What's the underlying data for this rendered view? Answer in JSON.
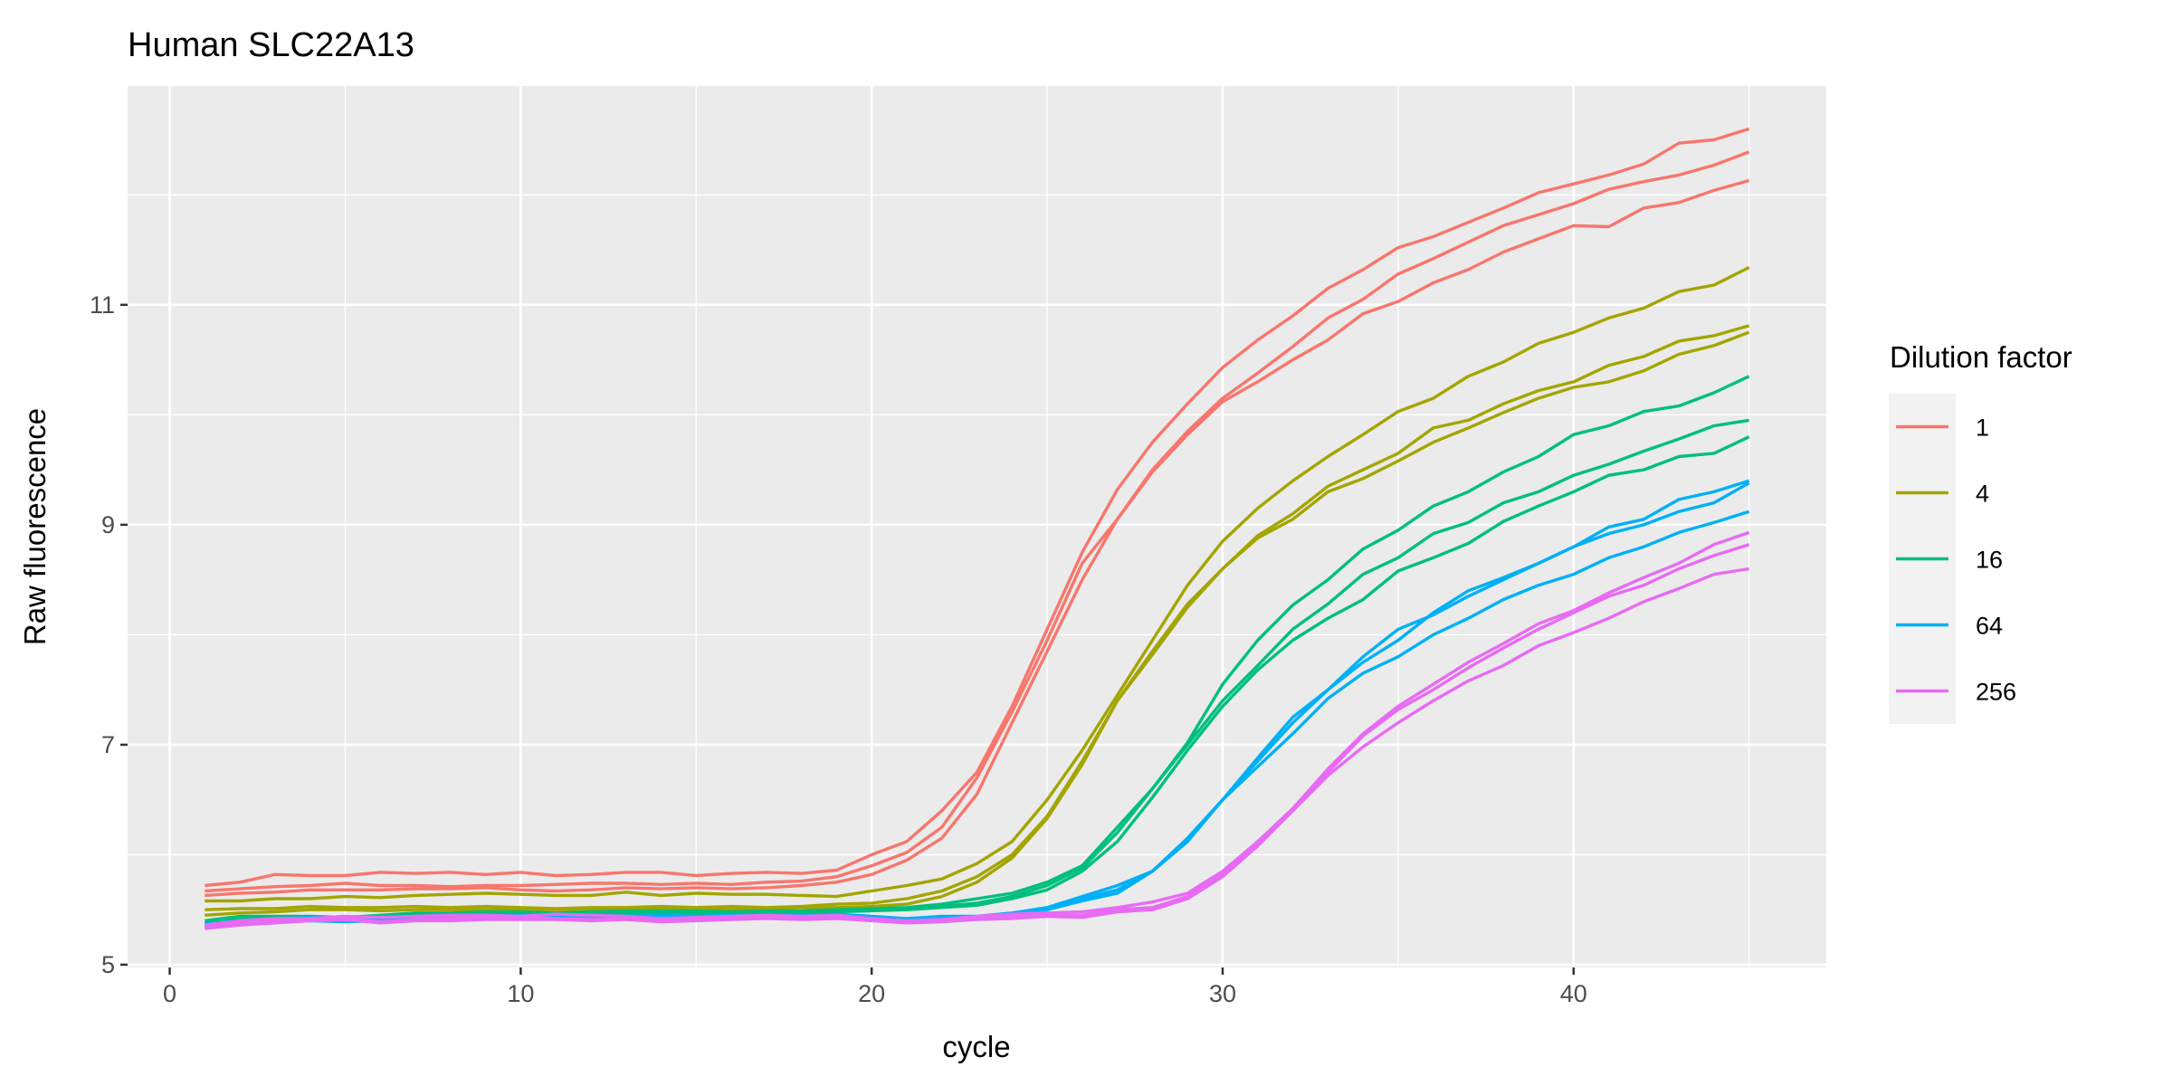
{
  "chart_data": {
    "type": "line",
    "title": "Human SLC22A13",
    "xlabel": "cycle",
    "ylabel": "Raw fluorescence",
    "xlim": [
      -1.2,
      47.2
    ],
    "ylim": [
      4.975,
      12.99
    ],
    "x_ticks": [
      0,
      10,
      20,
      30,
      40
    ],
    "y_ticks": [
      5,
      7,
      9,
      11
    ],
    "grid": true,
    "background": "#EBEBEB",
    "legend": {
      "title": "Dilution factor",
      "placement": "right"
    },
    "groups": [
      {
        "name": "1",
        "color": "#F8766D"
      },
      {
        "name": "4",
        "color": "#A3A500"
      },
      {
        "name": "16",
        "color": "#00BF7D"
      },
      {
        "name": "64",
        "color": "#00B0F6"
      },
      {
        "name": "256",
        "color": "#E76BF3"
      }
    ],
    "x": [
      1,
      2,
      3,
      4,
      5,
      6,
      7,
      8,
      9,
      10,
      11,
      12,
      13,
      14,
      15,
      16,
      17,
      18,
      19,
      20,
      21,
      22,
      23,
      24,
      25,
      26,
      27,
      28,
      29,
      30,
      31,
      32,
      33,
      34,
      35,
      36,
      37,
      38,
      39,
      40,
      41,
      42,
      43,
      44,
      45
    ],
    "series": [
      {
        "group": "1",
        "values": [
          5.72,
          5.75,
          5.82,
          5.81,
          5.81,
          5.84,
          5.83,
          5.84,
          5.82,
          5.84,
          5.81,
          5.82,
          5.84,
          5.84,
          5.81,
          5.83,
          5.84,
          5.83,
          5.86,
          6.0,
          6.12,
          6.4,
          6.75,
          7.35,
          8.05,
          8.75,
          9.32,
          9.75,
          10.1,
          10.43,
          10.68,
          10.9,
          11.15,
          11.32,
          11.52,
          11.62,
          11.75,
          11.88,
          12.02,
          12.1,
          12.18,
          12.28,
          12.47,
          12.5,
          12.6
        ]
      },
      {
        "group": "1",
        "values": [
          5.67,
          5.69,
          5.71,
          5.72,
          5.74,
          5.72,
          5.72,
          5.71,
          5.72,
          5.72,
          5.73,
          5.74,
          5.74,
          5.73,
          5.74,
          5.73,
          5.75,
          5.76,
          5.8,
          5.9,
          6.02,
          6.25,
          6.7,
          7.3,
          7.95,
          8.65,
          9.05,
          9.5,
          9.85,
          10.15,
          10.38,
          10.62,
          10.88,
          11.05,
          11.28,
          11.42,
          11.57,
          11.72,
          11.82,
          11.92,
          12.05,
          12.12,
          12.18,
          12.27,
          12.39
        ]
      },
      {
        "group": "1",
        "values": [
          5.63,
          5.65,
          5.66,
          5.68,
          5.68,
          5.68,
          5.69,
          5.69,
          5.7,
          5.68,
          5.67,
          5.68,
          5.7,
          5.69,
          5.7,
          5.69,
          5.7,
          5.72,
          5.75,
          5.82,
          5.95,
          6.15,
          6.55,
          7.2,
          7.85,
          8.5,
          9.05,
          9.48,
          9.82,
          10.12,
          10.3,
          10.5,
          10.68,
          10.92,
          11.03,
          11.2,
          11.32,
          11.48,
          11.6,
          11.72,
          11.71,
          11.88,
          11.93,
          12.04,
          12.13
        ]
      },
      {
        "group": "4",
        "values": [
          5.58,
          5.58,
          5.6,
          5.6,
          5.62,
          5.61,
          5.63,
          5.64,
          5.65,
          5.64,
          5.63,
          5.63,
          5.66,
          5.63,
          5.65,
          5.64,
          5.64,
          5.63,
          5.62,
          5.67,
          5.72,
          5.78,
          5.92,
          6.12,
          6.5,
          6.95,
          7.45,
          7.95,
          8.45,
          8.85,
          9.15,
          9.4,
          9.62,
          9.82,
          10.03,
          10.15,
          10.35,
          10.48,
          10.65,
          10.75,
          10.88,
          10.97,
          11.12,
          11.18,
          11.34
        ]
      },
      {
        "group": "4",
        "values": [
          5.5,
          5.51,
          5.51,
          5.53,
          5.52,
          5.52,
          5.53,
          5.52,
          5.53,
          5.52,
          5.51,
          5.52,
          5.52,
          5.53,
          5.52,
          5.53,
          5.52,
          5.53,
          5.55,
          5.56,
          5.6,
          5.67,
          5.8,
          6.0,
          6.35,
          6.85,
          7.4,
          7.85,
          8.28,
          8.6,
          8.9,
          9.1,
          9.35,
          9.5,
          9.65,
          9.88,
          9.95,
          10.1,
          10.22,
          10.3,
          10.45,
          10.53,
          10.67,
          10.72,
          10.81
        ]
      },
      {
        "group": "4",
        "values": [
          5.45,
          5.47,
          5.48,
          5.5,
          5.5,
          5.49,
          5.5,
          5.5,
          5.5,
          5.5,
          5.5,
          5.5,
          5.5,
          5.51,
          5.51,
          5.5,
          5.51,
          5.52,
          5.52,
          5.53,
          5.55,
          5.62,
          5.75,
          5.97,
          6.33,
          6.82,
          7.4,
          7.82,
          8.25,
          8.6,
          8.88,
          9.05,
          9.3,
          9.42,
          9.58,
          9.75,
          9.88,
          10.02,
          10.15,
          10.25,
          10.3,
          10.4,
          10.55,
          10.63,
          10.75
        ]
      },
      {
        "group": "16",
        "values": [
          5.4,
          5.44,
          5.44,
          5.44,
          5.43,
          5.45,
          5.47,
          5.47,
          5.48,
          5.48,
          5.47,
          5.48,
          5.49,
          5.49,
          5.49,
          5.48,
          5.49,
          5.49,
          5.5,
          5.51,
          5.52,
          5.55,
          5.6,
          5.65,
          5.75,
          5.9,
          6.25,
          6.6,
          7.02,
          7.55,
          7.95,
          8.27,
          8.5,
          8.78,
          8.95,
          9.17,
          9.3,
          9.48,
          9.62,
          9.82,
          9.9,
          10.03,
          10.08,
          10.2,
          10.35
        ]
      },
      {
        "group": "16",
        "values": [
          5.38,
          5.42,
          5.43,
          5.43,
          5.42,
          5.44,
          5.45,
          5.46,
          5.47,
          5.47,
          5.46,
          5.47,
          5.48,
          5.48,
          5.47,
          5.47,
          5.48,
          5.48,
          5.49,
          5.5,
          5.51,
          5.53,
          5.56,
          5.62,
          5.72,
          5.88,
          6.2,
          6.6,
          7.0,
          7.4,
          7.72,
          8.05,
          8.28,
          8.55,
          8.7,
          8.92,
          9.02,
          9.2,
          9.3,
          9.45,
          9.55,
          9.67,
          9.78,
          9.9,
          9.95
        ]
      },
      {
        "group": "16",
        "values": [
          5.35,
          5.4,
          5.41,
          5.41,
          5.4,
          5.42,
          5.43,
          5.44,
          5.45,
          5.46,
          5.45,
          5.45,
          5.46,
          5.47,
          5.46,
          5.46,
          5.47,
          5.47,
          5.48,
          5.49,
          5.5,
          5.52,
          5.54,
          5.6,
          5.68,
          5.85,
          6.12,
          6.52,
          6.95,
          7.35,
          7.68,
          7.95,
          8.15,
          8.32,
          8.58,
          8.7,
          8.83,
          9.03,
          9.17,
          9.3,
          9.45,
          9.5,
          9.62,
          9.65,
          9.8
        ]
      },
      {
        "group": "64",
        "values": [
          5.37,
          5.4,
          5.42,
          5.43,
          5.43,
          5.42,
          5.43,
          5.44,
          5.44,
          5.45,
          5.44,
          5.45,
          5.44,
          5.45,
          5.44,
          5.45,
          5.45,
          5.45,
          5.46,
          5.44,
          5.42,
          5.44,
          5.44,
          5.47,
          5.52,
          5.62,
          5.72,
          5.85,
          6.15,
          6.5,
          6.88,
          7.25,
          7.5,
          7.8,
          8.05,
          8.18,
          8.35,
          8.5,
          8.65,
          8.8,
          8.98,
          9.05,
          9.23,
          9.3,
          9.4
        ]
      },
      {
        "group": "64",
        "values": [
          5.35,
          5.38,
          5.4,
          5.41,
          5.4,
          5.41,
          5.42,
          5.43,
          5.43,
          5.43,
          5.43,
          5.44,
          5.43,
          5.44,
          5.43,
          5.43,
          5.44,
          5.44,
          5.44,
          5.43,
          5.41,
          5.42,
          5.43,
          5.45,
          5.5,
          5.6,
          5.68,
          5.85,
          6.15,
          6.5,
          6.85,
          7.2,
          7.5,
          7.75,
          7.95,
          8.2,
          8.4,
          8.52,
          8.65,
          8.8,
          8.92,
          9.0,
          9.12,
          9.2,
          9.38
        ]
      },
      {
        "group": "64",
        "values": [
          5.33,
          5.37,
          5.39,
          5.4,
          5.39,
          5.4,
          5.41,
          5.42,
          5.42,
          5.42,
          5.42,
          5.43,
          5.42,
          5.42,
          5.42,
          5.42,
          5.43,
          5.43,
          5.43,
          5.42,
          5.4,
          5.41,
          5.42,
          5.45,
          5.5,
          5.58,
          5.65,
          5.85,
          6.12,
          6.5,
          6.8,
          7.1,
          7.42,
          7.65,
          7.8,
          8.0,
          8.15,
          8.32,
          8.45,
          8.55,
          8.7,
          8.8,
          8.93,
          9.02,
          9.12
        ]
      },
      {
        "group": "256",
        "values": [
          5.36,
          5.4,
          5.42,
          5.42,
          5.44,
          5.43,
          5.44,
          5.45,
          5.45,
          5.44,
          5.46,
          5.45,
          5.44,
          5.42,
          5.43,
          5.44,
          5.45,
          5.44,
          5.45,
          5.42,
          5.4,
          5.41,
          5.44,
          5.46,
          5.47,
          5.48,
          5.52,
          5.57,
          5.65,
          5.85,
          6.12,
          6.42,
          6.78,
          7.1,
          7.35,
          7.55,
          7.75,
          7.92,
          8.1,
          8.22,
          8.38,
          8.52,
          8.65,
          8.82,
          8.93
        ]
      },
      {
        "group": "256",
        "values": [
          5.34,
          5.38,
          5.4,
          5.41,
          5.42,
          5.39,
          5.41,
          5.42,
          5.43,
          5.43,
          5.42,
          5.41,
          5.42,
          5.4,
          5.41,
          5.42,
          5.43,
          5.42,
          5.43,
          5.41,
          5.39,
          5.4,
          5.42,
          5.44,
          5.45,
          5.45,
          5.5,
          5.52,
          5.62,
          5.83,
          6.1,
          6.4,
          6.75,
          7.08,
          7.32,
          7.5,
          7.7,
          7.88,
          8.05,
          8.2,
          8.35,
          8.45,
          8.6,
          8.72,
          8.82
        ]
      },
      {
        "group": "256",
        "values": [
          5.33,
          5.36,
          5.38,
          5.4,
          5.41,
          5.38,
          5.4,
          5.4,
          5.41,
          5.41,
          5.41,
          5.4,
          5.41,
          5.39,
          5.4,
          5.41,
          5.42,
          5.41,
          5.42,
          5.4,
          5.38,
          5.39,
          5.41,
          5.42,
          5.44,
          5.43,
          5.48,
          5.5,
          5.6,
          5.8,
          6.08,
          6.4,
          6.72,
          6.98,
          7.2,
          7.4,
          7.58,
          7.72,
          7.9,
          8.02,
          8.15,
          8.3,
          8.42,
          8.55,
          8.6
        ]
      }
    ]
  }
}
